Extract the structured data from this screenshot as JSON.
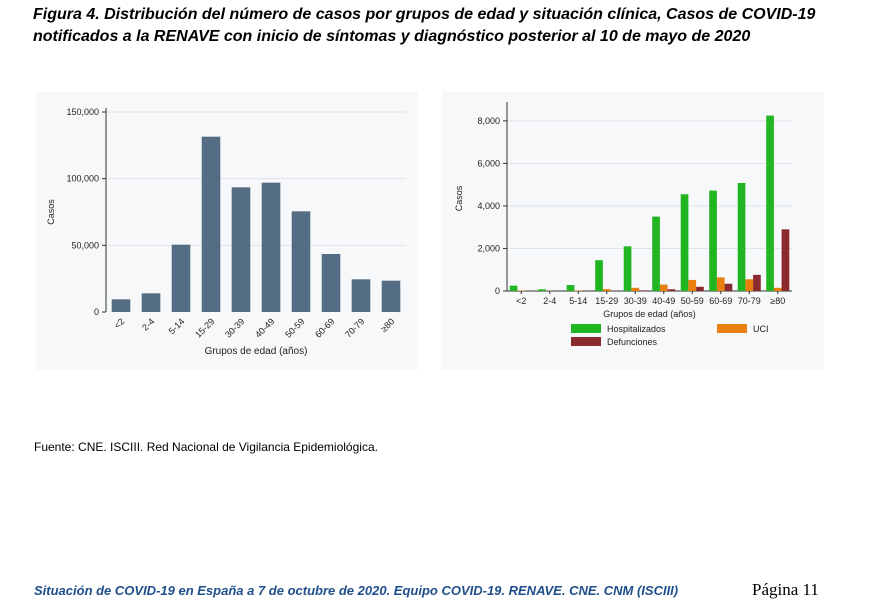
{
  "figure": {
    "title": "Figura 4. Distribución del número de casos por grupos de edad y situación clínica, Casos de COVID-19 notificados a la RENAVE con inicio de síntomas y diagnóstico posterior al 10 de mayo de 2020"
  },
  "source_note": "Fuente: CNE. ISCIII. Red Nacional de Vigilancia Epidemiológica.",
  "footer": {
    "left": "Situación de COVID-19 en España a 7 de octubre de 2020. Equipo COVID-19. RENAVE. CNE. CNM (ISCIII)",
    "page": "Página 11"
  },
  "colors": {
    "bar_gray": "#546d85",
    "hospitalizados": "#22b522",
    "uci": "#e97f0f",
    "defunciones": "#8b2a2e",
    "grid": "#dfe4e8",
    "panel_bg": "#f7f8fa"
  },
  "chart_data": [
    {
      "type": "bar",
      "title": "",
      "xlabel": "Grupos de edad (años)",
      "ylabel": "Casos",
      "categories": [
        "<2",
        "2-4",
        "5-14",
        "15-29",
        "30-39",
        "40-49",
        "50-59",
        "60-69",
        "70-79",
        "≥80"
      ],
      "values": [
        9500,
        14000,
        50500,
        131500,
        93500,
        97000,
        75500,
        43500,
        24500,
        23500
      ],
      "ylim": [
        0,
        150000
      ],
      "yticks": [
        0,
        50000,
        100000,
        150000
      ],
      "ytick_labels": [
        "0",
        "50,000",
        "100,000",
        "150,000"
      ],
      "grid": true
    },
    {
      "type": "bar",
      "title": "",
      "xlabel": "Grupos de edad (años)",
      "ylabel": "Casos",
      "categories": [
        "<2",
        "2-4",
        "5-14",
        "15-29",
        "30-39",
        "40-49",
        "50-59",
        "60-69",
        "70-79",
        "≥80"
      ],
      "series": [
        {
          "name": "Hospitalizados",
          "values": [
            250,
            80,
            280,
            1450,
            2100,
            3500,
            4550,
            4720,
            5080,
            8250
          ]
        },
        {
          "name": "UCI",
          "values": [
            20,
            10,
            20,
            90,
            150,
            300,
            520,
            640,
            550,
            150
          ]
        },
        {
          "name": "Defunciones",
          "values": [
            0,
            0,
            0,
            10,
            30,
            80,
            200,
            340,
            760,
            2900
          ]
        }
      ],
      "ylim": [
        0,
        8700
      ],
      "yticks": [
        0,
        2000,
        4000,
        6000,
        8000
      ],
      "ytick_labels": [
        "0",
        "2,000",
        "4,000",
        "6,000",
        "8,000"
      ],
      "legend_position": "bottom",
      "grid": true
    }
  ]
}
